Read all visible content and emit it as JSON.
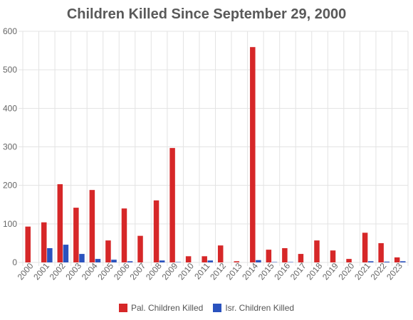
{
  "chart_data": {
    "type": "bar",
    "title": "Children Killed Since September 29, 2000",
    "xlabel": "",
    "ylabel": "",
    "ylim": [
      0,
      600
    ],
    "yticks": [
      0,
      100,
      200,
      300,
      400,
      500,
      600
    ],
    "grid": true,
    "legend_position": "bottom",
    "categories": [
      "2000",
      "2001",
      "2002",
      "2003",
      "2004",
      "2005",
      "2006",
      "2007",
      "2008",
      "2009",
      "2010",
      "2011",
      "2012",
      "2013",
      "2014",
      "2015",
      "2016",
      "2017",
      "2018",
      "2019",
      "2020",
      "2021",
      "2022",
      "2023"
    ],
    "series": [
      {
        "name": "Pal. Children Killed",
        "color": "#d62728",
        "values": [
          93,
          104,
          203,
          142,
          188,
          57,
          140,
          69,
          161,
          297,
          16,
          16,
          44,
          3,
          559,
          33,
          37,
          22,
          57,
          31,
          9,
          77,
          50,
          13
        ]
      },
      {
        "name": "Isr. Children Killed",
        "color": "#2a52be",
        "values": [
          0,
          37,
          46,
          22,
          9,
          7,
          3,
          0,
          5,
          1,
          0,
          5,
          0,
          0,
          6,
          1,
          1,
          0,
          0,
          0,
          0,
          3,
          2,
          3
        ]
      }
    ]
  }
}
